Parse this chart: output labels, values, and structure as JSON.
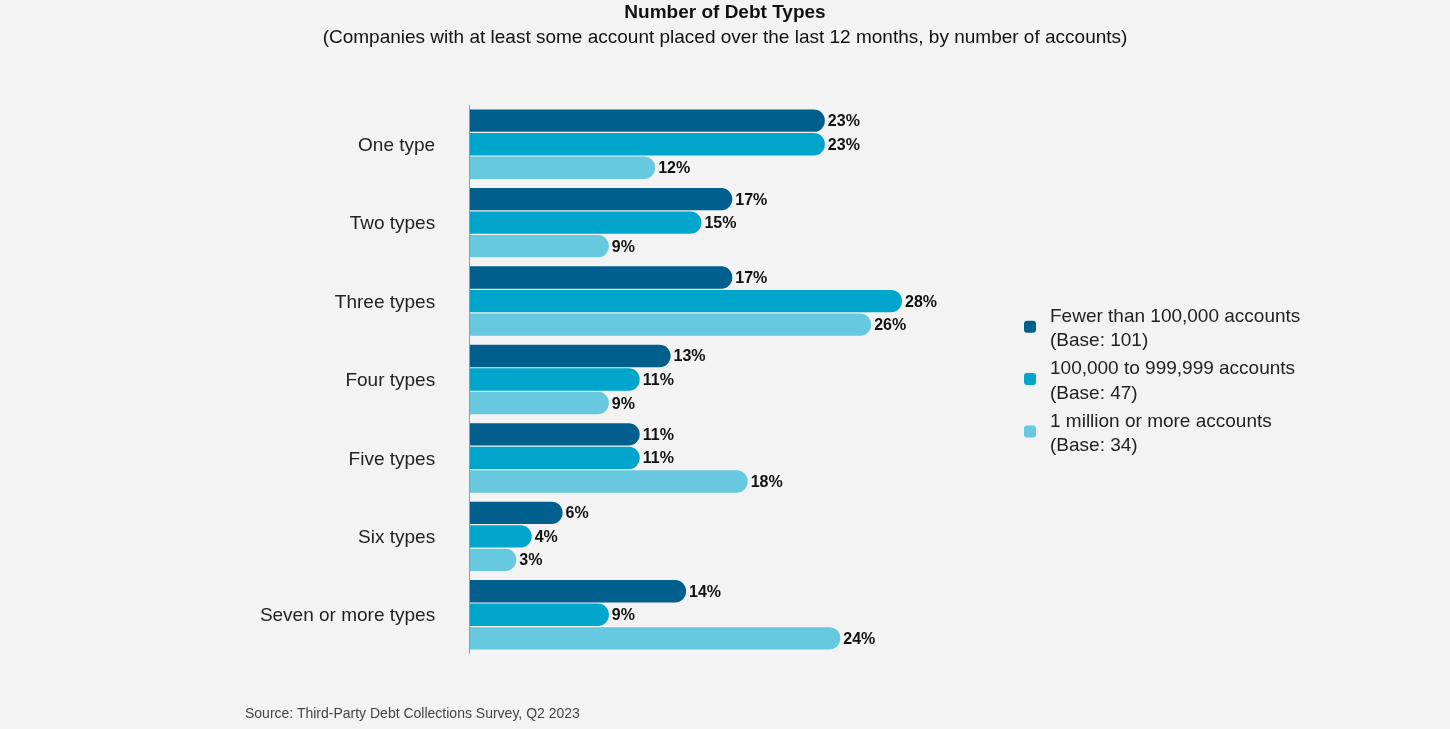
{
  "chart_data": {
    "type": "bar",
    "orientation": "horizontal",
    "title": "Number of Debt Types",
    "subtitle": "(Companies with at least some account placed over the last 12 months, by number of accounts)",
    "categories": [
      "One type",
      "Two types",
      "Three types",
      "Four types",
      "Five types",
      "Six types",
      "Seven or more types"
    ],
    "series": [
      {
        "name": "Fewer than 100,000 accounts\n(Base: 101)",
        "color": "#005f8c",
        "values": [
          23,
          17,
          17,
          13,
          11,
          6,
          14
        ],
        "value_labels": [
          "23%",
          "17%",
          "17%",
          "13%",
          "11%",
          "6%",
          "14%"
        ]
      },
      {
        "name": "100,000 to 999,999 accounts\n(Base: 47)",
        "color": "#00a5cc",
        "values": [
          23,
          15,
          28,
          11,
          11,
          4,
          9
        ],
        "value_labels": [
          "23%",
          "15%",
          "28%",
          "11%",
          "11%",
          "4%",
          "9%"
        ]
      },
      {
        "name": "1 million or more accounts\n(Base: 34)",
        "color": "#66c9df",
        "values": [
          12,
          9,
          26,
          9,
          18,
          3,
          24
        ],
        "value_labels": [
          "12%",
          "9%",
          "26%",
          "9%",
          "18%",
          "3%",
          "24%"
        ]
      }
    ],
    "legend": "right",
    "grid": false,
    "tick_labels": "y",
    "annotations": [
      "Source: Third-Party Debt Collections Survey, Q2 2023"
    ]
  }
}
